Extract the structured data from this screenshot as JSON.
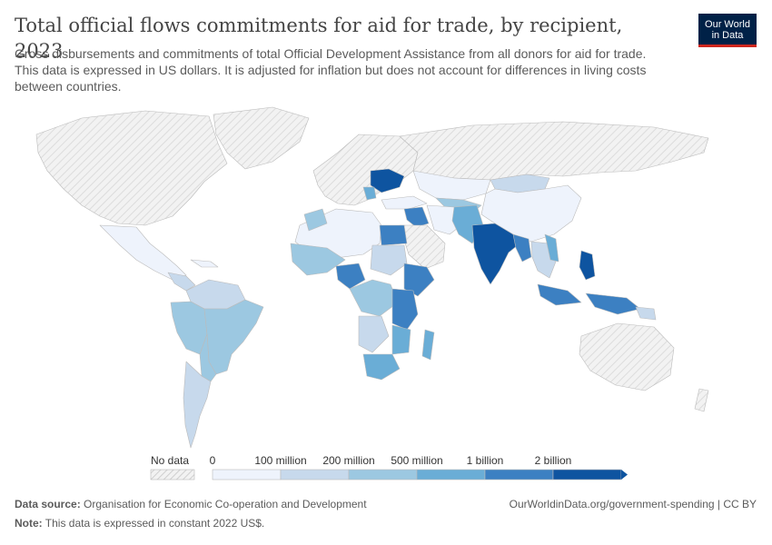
{
  "header": {
    "title": "Total official flows commitments for aid for trade, by recipient, 2023",
    "subtitle": "Gross disbursements and commitments of total Official Development Assistance from all donors for aid for trade. This data is expressed in US dollars. It is adjusted for inflation but does not account for differences in living costs between countries."
  },
  "logo": {
    "line1": "Our World",
    "line2": "in Data"
  },
  "legend": {
    "no_data_label": "No data",
    "bins": [
      {
        "label": "0",
        "color": "#eef3fc"
      },
      {
        "label": "100 million",
        "color": "#c7d9ec"
      },
      {
        "label": "200 million",
        "color": "#9cc8e1"
      },
      {
        "label": "500 million",
        "color": "#6aadd6"
      },
      {
        "label": "1 billion",
        "color": "#3c80c2"
      },
      {
        "label": "2 billion",
        "color": "#0e54a0"
      }
    ]
  },
  "colors": {
    "no_data": "#e6e6e6",
    "land_border": "#bbbbbb"
  },
  "footer": {
    "source_label": "Data source:",
    "source_text": "Organisation for Economic Co-operation and Development",
    "note_label": "Note:",
    "note_text": "This data is expressed in constant 2022 US$.",
    "url_text": "OurWorldinData.org/government-spending | CC BY"
  }
}
